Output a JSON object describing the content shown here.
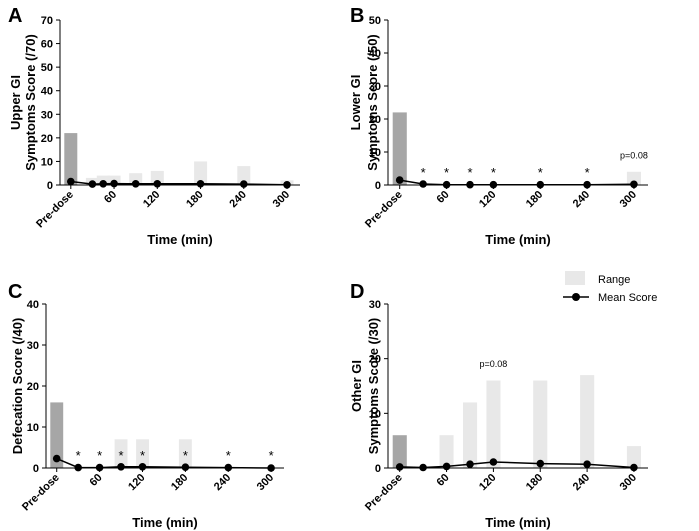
{
  "legend": {
    "range_label": "Range",
    "mean_label": "Mean Score",
    "colors": {
      "range": "#e8e8e8",
      "predose_bar": "#a6a6a6",
      "line": "#000000"
    }
  },
  "chart_data": [
    {
      "panel": "A",
      "type": "bar",
      "ylabel_lines": [
        "Upper GI",
        "Symptoms Score  (/70)"
      ],
      "xlabel": "Time (min)",
      "ylim": [
        0,
        70
      ],
      "yticks": [
        0,
        10,
        20,
        30,
        40,
        50,
        60,
        70
      ],
      "x_ticks": [
        0,
        60,
        120,
        180,
        240,
        300
      ],
      "x_tick_labels": [
        "Pre-dose",
        "60",
        "120",
        "180",
        "240",
        "300"
      ],
      "range_x": [
        0,
        30,
        45,
        60,
        90,
        120,
        180,
        240,
        300
      ],
      "range_values": [
        22,
        3,
        4,
        4,
        5,
        6,
        10,
        8,
        2
      ],
      "mean_x": [
        0,
        30,
        45,
        60,
        90,
        120,
        180,
        240,
        300
      ],
      "mean_values": [
        1.5,
        0.4,
        0.5,
        0.6,
        0.5,
        0.5,
        0.5,
        0.4,
        0.1
      ],
      "stars_x": [],
      "annotations": []
    },
    {
      "panel": "B",
      "type": "bar",
      "ylabel_lines": [
        "Lower GI",
        "Symptoms Score (/50)"
      ],
      "xlabel": "Time (min)",
      "ylim": [
        0,
        50
      ],
      "yticks": [
        0,
        10,
        20,
        30,
        40,
        50
      ],
      "x_ticks": [
        0,
        60,
        120,
        180,
        240,
        300
      ],
      "x_tick_labels": [
        "Pre-dose",
        "60",
        "120",
        "180",
        "240",
        "300"
      ],
      "range_x": [
        0,
        300
      ],
      "range_values": [
        22,
        4
      ],
      "mean_x": [
        0,
        30,
        60,
        90,
        120,
        180,
        240,
        300
      ],
      "mean_values": [
        1.5,
        0.3,
        0.1,
        0.1,
        0.1,
        0.1,
        0.1,
        0.2
      ],
      "stars_x": [
        30,
        60,
        90,
        120,
        180,
        240
      ],
      "annotations": [
        {
          "text": "p=0.08",
          "x": 300,
          "y": 8
        }
      ]
    },
    {
      "panel": "C",
      "type": "bar",
      "ylabel_lines": [
        "Defecation Score (/40)"
      ],
      "xlabel": "Time (min)",
      "ylim": [
        0,
        40
      ],
      "yticks": [
        0,
        10,
        20,
        30,
        40
      ],
      "x_ticks": [
        0,
        60,
        120,
        180,
        240,
        300
      ],
      "x_tick_labels": [
        "Pre-dose",
        "60",
        "120",
        "180",
        "240",
        "300"
      ],
      "range_x": [
        0,
        90,
        120,
        180
      ],
      "range_values": [
        16,
        7,
        7,
        7
      ],
      "mean_x": [
        0,
        30,
        60,
        90,
        120,
        180,
        240,
        300
      ],
      "mean_values": [
        2.3,
        0.1,
        0.1,
        0.3,
        0.3,
        0.2,
        0.1,
        0.0
      ],
      "stars_x": [
        30,
        60,
        90,
        120,
        180,
        240,
        300
      ],
      "annotations": []
    },
    {
      "panel": "D",
      "type": "bar",
      "ylabel_lines": [
        "Other GI",
        "Symptoms Score (/30)"
      ],
      "xlabel": "Time (min)",
      "ylim": [
        0,
        30
      ],
      "yticks": [
        0,
        10,
        20,
        30
      ],
      "x_ticks": [
        0,
        60,
        120,
        180,
        240,
        300
      ],
      "x_tick_labels": [
        "Pre-dose",
        "60",
        "120",
        "180",
        "240",
        "300"
      ],
      "range_x": [
        0,
        60,
        90,
        120,
        180,
        240,
        300
      ],
      "range_values": [
        6,
        6,
        12,
        16,
        16,
        17,
        4
      ],
      "mean_x": [
        0,
        30,
        60,
        90,
        120,
        180,
        240,
        300
      ],
      "mean_values": [
        0.2,
        0.1,
        0.3,
        0.7,
        1.1,
        0.8,
        0.7,
        0.1
      ],
      "stars_x": [],
      "annotations": [
        {
          "text": "p=0.08",
          "x": 120,
          "y": 18.5
        }
      ]
    }
  ]
}
